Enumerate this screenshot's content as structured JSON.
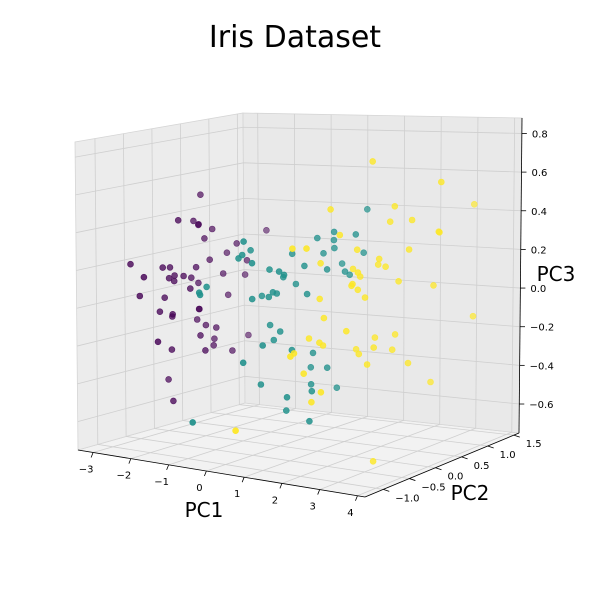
{
  "chart_data": {
    "type": "scatter",
    "projection": "3d",
    "title": "Iris Dataset",
    "xlabel": "PC1",
    "ylabel": "PC2",
    "zlabel": "PC3",
    "xlim": [
      -3.4,
      4.2
    ],
    "ylim": [
      -1.35,
      1.6
    ],
    "zlim": [
      -0.75,
      0.88
    ],
    "x_ticks": [
      -3,
      -2,
      -1,
      0,
      1,
      2,
      3,
      4
    ],
    "y_ticks": [
      -1.0,
      -0.5,
      0.0,
      0.5,
      1.0,
      1.5
    ],
    "z_ticks": [
      -0.6,
      -0.4,
      -0.2,
      0.0,
      0.2,
      0.4,
      0.6,
      0.8
    ],
    "x_tick_labels": [
      "−3",
      "−2",
      "−1",
      "0",
      "1",
      "2",
      "3",
      "4"
    ],
    "y_tick_labels": [
      "−1.0",
      "−0.5",
      "0.0",
      "0.5",
      "1.0",
      "1.5"
    ],
    "z_tick_labels": [
      "−0.6",
      "−0.4",
      "−0.2",
      "0.0",
      "0.2",
      "0.4",
      "0.6",
      "0.8"
    ],
    "grid": true,
    "legend": "none",
    "colors": [
      "#440154",
      "#21918c",
      "#fde725"
    ],
    "series": [
      {
        "x": [
          -2.68,
          -2.71,
          -2.89,
          -2.75,
          -2.73,
          -2.28,
          -2.82,
          -2.63,
          -2.89,
          -2.67,
          -2.51,
          -2.61,
          -2.79,
          -3.23,
          -2.64,
          -2.38,
          -2.62,
          -2.65,
          -2.2,
          -2.59,
          -2.31,
          -2.54,
          -3.22,
          -2.3,
          -2.36,
          -2.51,
          -2.47,
          -2.56,
          -2.64,
          -2.63,
          -2.59,
          -2.41,
          -2.65,
          -2.6,
          -2.68,
          -2.75,
          -2.43,
          -2.7,
          -2.36,
          -2.87,
          -2.21,
          -2.55,
          -2.78,
          -2.62,
          -2.65,
          -2.2,
          -2.56
        ],
        "y": [
          0.32,
          -0.18,
          -0.14,
          -0.32,
          0.33,
          0.74,
          -0.09,
          0.16,
          -0.58,
          -0.11,
          0.65,
          0.01,
          -0.24,
          -0.51,
          1.18,
          1.34,
          0.81,
          0.31,
          0.87,
          0.51,
          0.39,
          0.43,
          0.14,
          0.1,
          -0.04,
          -0.15,
          0.14,
          0.37,
          0.31,
          -0.19,
          -0.2,
          0.41,
          0.81,
          1.1,
          -0.11,
          0.37,
          0.16,
          0.25,
          -0.62,
          -0.02,
          0.61,
          -0.22,
          0.43,
          0.56,
          -0.67,
          0.12,
          0.35
        ],
        "z": [
          0.03,
          0.09,
          -0.02,
          -0.08,
          -0.17,
          0.22,
          0.14,
          0.07,
          0.02,
          0.1,
          0.06,
          0.09,
          0.15,
          0.18,
          -0.32,
          0.25,
          -0.07,
          -0.11,
          0.12,
          0.31,
          -0.21,
          0.15,
          -0.49,
          -0.23,
          0.03,
          0.4,
          0.13,
          -0.2,
          -0.11,
          -0.29,
          -0.1,
          -0.31,
          0.16,
          0.02,
          0.07,
          0.34,
          0.36,
          0.37,
          -0.21,
          -0.13,
          -0.35,
          -0.56,
          0.5,
          -0.29,
          0.13,
          -0.31,
          0.27
        ]
      },
      {
        "x": [
          1.28,
          0.93,
          1.46,
          0.18,
          1.09,
          0.64,
          1.1,
          -0.75,
          1.04,
          -0.01,
          -0.51,
          0.51,
          0.26,
          0.98,
          -0.17,
          0.93,
          0.66,
          0.23,
          0.94,
          0.04,
          1.12,
          0.36,
          1.3,
          0.92,
          0.71,
          0.9,
          1.33,
          1.56,
          0.81,
          -0.31,
          -0.07,
          -0.19,
          0.14,
          1.38,
          0.59,
          0.81,
          1.22,
          0.81,
          0.25,
          0.16,
          0.46,
          0.89,
          0.23,
          -0.71,
          0.36,
          0.33,
          0.38,
          0.64,
          -0.91,
          0.3
        ],
        "y": [
          0.69,
          0.32,
          0.5,
          -0.83,
          0.07,
          -0.42,
          0.28,
          -1.0,
          0.23,
          -0.72,
          -1.26,
          -0.1,
          -0.55,
          -0.12,
          -0.25,
          0.47,
          -0.35,
          -0.33,
          -0.54,
          -0.58,
          0.08,
          -0.07,
          -0.33,
          -0.18,
          0.15,
          0.33,
          0.24,
          0.27,
          -0.16,
          -0.37,
          -0.7,
          -0.68,
          -0.31,
          -0.42,
          -0.48,
          0.2,
          0.41,
          -0.37,
          -0.27,
          -0.68,
          -0.67,
          -0.03,
          -0.4,
          -1.01,
          -0.5,
          -0.21,
          -0.29,
          0.11,
          -0.75,
          -0.35
        ],
        "z": [
          0.44,
          0.26,
          0.23,
          -0.25,
          0.17,
          0.17,
          -0.45,
          0.1,
          0.35,
          0.35,
          -0.53,
          0.1,
          -0.38,
          -0.4,
          0.04,
          0.17,
          -0.52,
          0.07,
          -0.43,
          0.05,
          -0.33,
          0.25,
          -0.41,
          0.06,
          0.32,
          0.3,
          0.15,
          0.34,
          0.2,
          0.28,
          0.28,
          0.26,
          -0.1,
          -0.55,
          0.19,
          0.24,
          0.12,
          -0.21,
          0.06,
          0.24,
          -0.17,
          -0.25,
          0.19,
          0.09,
          0.06,
          0.14,
          -0.13,
          -0.34,
          0.11,
          -0.17
        ]
      },
      {
        "x": [
          2.53,
          1.41,
          2.62,
          1.97,
          2.35,
          3.4,
          0.52,
          2.93,
          2.32,
          2.92,
          1.66,
          1.8,
          2.17,
          1.34,
          1.59,
          1.9,
          1.95,
          3.49,
          3.79,
          1.3,
          2.43,
          1.2,
          3.5,
          1.39,
          2.28,
          2.61,
          1.26,
          1.29,
          2.12,
          2.39,
          2.84,
          3.23,
          2.16,
          1.44,
          1.78,
          3.08,
          2.14,
          1.9,
          1.17,
          2.11,
          2.31,
          1.92,
          1.41,
          2.56,
          2.42,
          1.94,
          1.53,
          1.76,
          1.9,
          1.39
        ],
        "y": [
          -0.01,
          -0.57,
          0.34,
          -0.18,
          -0.04,
          0.55,
          -1.19,
          0.35,
          -0.24,
          0.78,
          0.24,
          -0.22,
          0.21,
          -0.78,
          -0.54,
          0.12,
          0.04,
          1.18,
          0.26,
          -0.76,
          0.38,
          -0.61,
          0.46,
          -0.2,
          0.33,
          0.56,
          -0.18,
          -0.12,
          -0.21,
          0.46,
          0.37,
          1.37,
          -0.22,
          -0.14,
          -0.5,
          0.69,
          0.14,
          0.05,
          -0.31,
          0.31,
          0.18,
          0.41,
          -0.57,
          0.28,
          0.3,
          0.19,
          -0.37,
          0.08,
          0.12,
          -0.28
        ],
        "z": [
          -0.76,
          -0.3,
          0.11,
          -0.11,
          -0.28,
          0.35,
          -0.55,
          0.42,
          0.19,
          -0.43,
          -0.24,
          0.37,
          -0.22,
          -0.2,
          -0.44,
          -0.25,
          0.08,
          -0.12,
          0.62,
          0.33,
          -0.24,
          -0.2,
          0.36,
          -0.19,
          0.18,
          -0.32,
          0.22,
          -0.06,
          0.12,
          -0.17,
          0.27,
          0.44,
          0.13,
          0.49,
          -0.39,
          0.07,
          0.72,
          0.28,
          -0.15,
          0.19,
          0.23,
          -0.19,
          0.32,
          0.49,
          0.41,
          0.03,
          -0.16,
          0.18,
          0.14,
          0.05
        ]
      }
    ]
  }
}
